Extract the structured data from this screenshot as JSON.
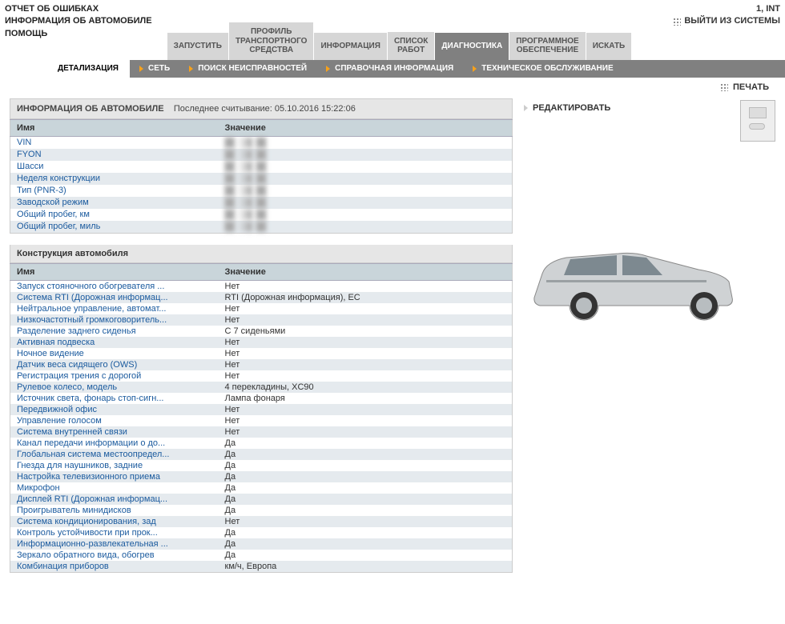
{
  "header": {
    "left_lines": [
      "ОТЧЕТ ОБ ОШИБКАХ",
      "ИНФОРМАЦИЯ ОБ АВТОМОБИЛЕ",
      "ПОМОЩЬ"
    ],
    "right_user": "1, INT",
    "exit_label": "ВЫЙТИ ИЗ СИСТЕМЫ"
  },
  "main_tabs": [
    {
      "label": "ЗАПУСТИТЬ",
      "active": false
    },
    {
      "label": "ПРОФИЛЬ ТРАНСПОРТНОГО СРЕДСТВА",
      "active": false
    },
    {
      "label": "ИНФОРМАЦИЯ",
      "active": false
    },
    {
      "label": "СПИСОК РАБОТ",
      "active": false
    },
    {
      "label": "ДИАГНОСТИКА",
      "active": true
    },
    {
      "label": "ПРОГРАММНОЕ ОБЕСПЕЧЕНИЕ",
      "active": false
    },
    {
      "label": "ИСКАТЬ",
      "active": false
    }
  ],
  "sub_tabs": {
    "active": "ДЕТАЛИЗАЦИЯ",
    "items": [
      "СЕТЬ",
      "ПОИСК НЕИСПРАВНОСТЕЙ",
      "СПРАВОЧНАЯ ИНФОРМАЦИЯ",
      "ТЕХНИЧЕСКОЕ ОБСЛУЖИВАНИЕ"
    ]
  },
  "print_label": "ПЕЧАТЬ",
  "edit_label": "РЕДАКТИРОВАТЬ",
  "info_panel": {
    "title": "ИНФОРМАЦИЯ ОБ АВТОМОБИЛЕ",
    "sub": "Последнее считывание: 05.10.2016 15:22:06",
    "col_name": "Имя",
    "col_value": "Значение",
    "rows": [
      {
        "name": "VIN",
        "value": ""
      },
      {
        "name": "FYON",
        "value": ""
      },
      {
        "name": "Шасси",
        "value": ""
      },
      {
        "name": "Неделя конструкции",
        "value": ""
      },
      {
        "name": "Тип (PNR-3)",
        "value": ""
      },
      {
        "name": "Заводской режим",
        "value": ""
      },
      {
        "name": "Общий пробег, км",
        "value": ""
      },
      {
        "name": "Общий пробег, миль",
        "value": ""
      }
    ]
  },
  "construction_panel": {
    "title": "Конструкция автомобиля",
    "col_name": "Имя",
    "col_value": "Значение",
    "rows": [
      {
        "name": "Запуск стояночного обогревателя ...",
        "value": "Нет"
      },
      {
        "name": "Система RTI (Дорожная информац...",
        "value": "RTI (Дорожная информация), EC"
      },
      {
        "name": "Нейтральное управление, автомат...",
        "value": "Нет"
      },
      {
        "name": "Низкочастотный громкоговоритель...",
        "value": "Нет"
      },
      {
        "name": "Разделение заднего сиденья",
        "value": "С 7 сиденьями"
      },
      {
        "name": "Активная подвеска",
        "value": "Нет"
      },
      {
        "name": "Ночное видение",
        "value": "Нет"
      },
      {
        "name": "Датчик веса сидящего (OWS)",
        "value": "Нет"
      },
      {
        "name": "Регистрация трения с дорогой",
        "value": "Нет"
      },
      {
        "name": "Рулевое колесо, модель",
        "value": "4 перекладины, XC90"
      },
      {
        "name": "Источник света, фонарь стоп-сигн...",
        "value": "Лампа фонаря"
      },
      {
        "name": "Передвижной офис",
        "value": "Нет"
      },
      {
        "name": "Управление голосом",
        "value": "Нет"
      },
      {
        "name": "Система внутренней связи",
        "value": "Нет"
      },
      {
        "name": "Канал передачи информации о до...",
        "value": "Да"
      },
      {
        "name": "Глобальная система местоопредел...",
        "value": "Да"
      },
      {
        "name": "Гнезда для наушников, задние",
        "value": "Да"
      },
      {
        "name": "Настройка телевизионного приема",
        "value": "Да"
      },
      {
        "name": "Микрофон",
        "value": "Да"
      },
      {
        "name": "Дисплей RTI (Дорожная информац...",
        "value": "Да"
      },
      {
        "name": "Проигрыватель минидисков",
        "value": "Да"
      },
      {
        "name": "Система кондиционирования, зад",
        "value": "Нет"
      },
      {
        "name": "Контроль устойчивости при прок...",
        "value": "Да"
      },
      {
        "name": "Информационно-развлекательная ...",
        "value": "Да"
      },
      {
        "name": "Зеркало обратного вида, обогрев",
        "value": "Да"
      },
      {
        "name": "Комбинация приборов",
        "value": "км/ч, Европа"
      }
    ]
  },
  "colors": {
    "tab_bg": "#d6d6d6",
    "tab_active": "#808080",
    "link": "#1a5a9e",
    "header_row": "#c9d5da",
    "stripe": "#e5eaee",
    "arrow": "#f7a11a"
  }
}
